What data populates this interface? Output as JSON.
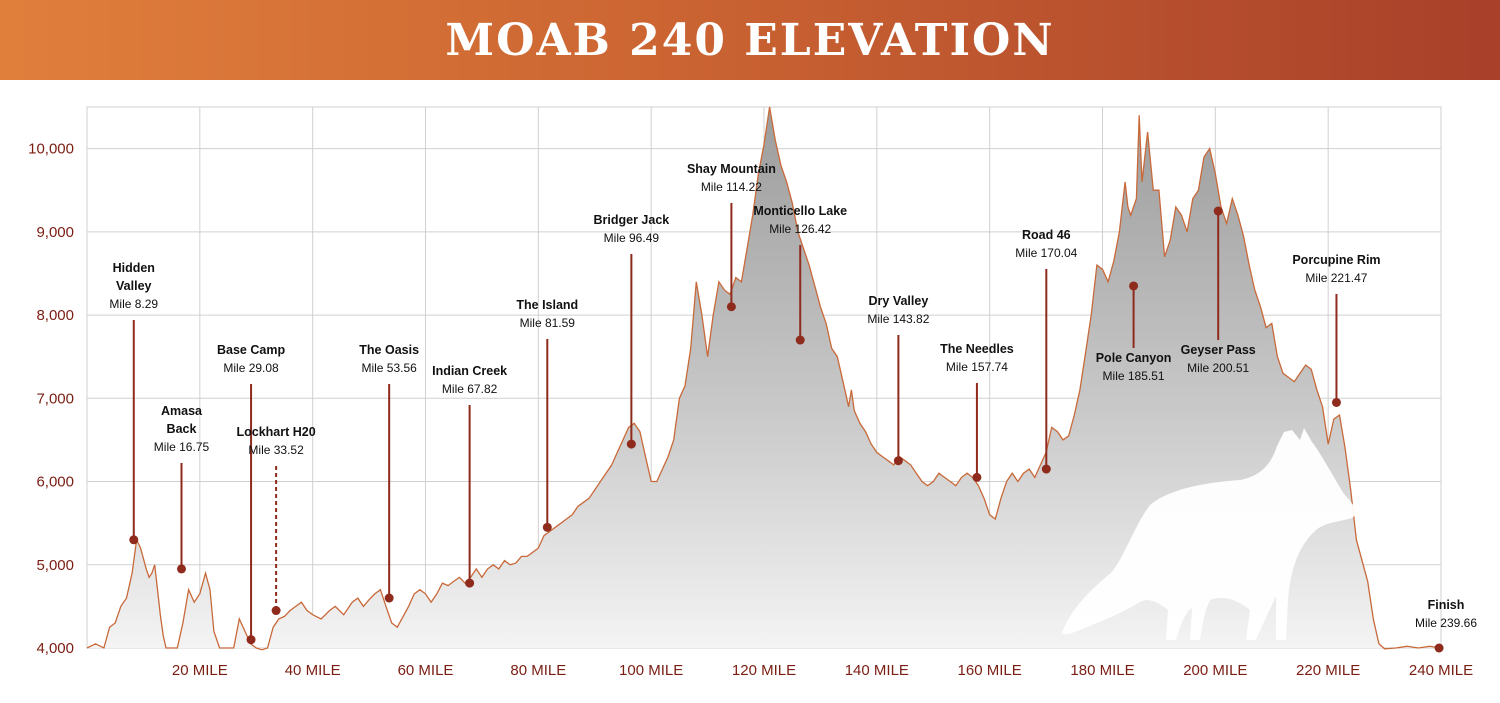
{
  "title": "MOAB 240 ELEVATION",
  "chart_data": {
    "type": "area",
    "xlim": [
      0,
      240
    ],
    "ylim": [
      4000,
      10500
    ],
    "grid": true,
    "y_ticks": [
      {
        "value": 4000,
        "label": "4,000"
      },
      {
        "value": 5000,
        "label": "5,000"
      },
      {
        "value": 6000,
        "label": "6,000"
      },
      {
        "value": 7000,
        "label": "7,000"
      },
      {
        "value": 8000,
        "label": "8,000"
      },
      {
        "value": 9000,
        "label": "9,000"
      },
      {
        "value": 10000,
        "label": "10,000"
      }
    ],
    "x_ticks": [
      {
        "value": 20,
        "label": "20 MILE"
      },
      {
        "value": 40,
        "label": "40 MILE"
      },
      {
        "value": 60,
        "label": "60 MILE"
      },
      {
        "value": 80,
        "label": "80 MILE"
      },
      {
        "value": 100,
        "label": "100 MILE"
      },
      {
        "value": 120,
        "label": "120 MILE"
      },
      {
        "value": 140,
        "label": "140 MILE"
      },
      {
        "value": 160,
        "label": "160 MILE"
      },
      {
        "value": 180,
        "label": "180 MILE"
      },
      {
        "value": 200,
        "label": "200 MILE"
      },
      {
        "value": 220,
        "label": "220 MILE"
      },
      {
        "value": 240,
        "label": "240 MILE"
      }
    ],
    "profile": [
      [
        0,
        4000
      ],
      [
        1.5,
        4050
      ],
      [
        3,
        4000
      ],
      [
        4,
        4250
      ],
      [
        5,
        4300
      ],
      [
        6,
        4500
      ],
      [
        7,
        4600
      ],
      [
        8,
        4900
      ],
      [
        8.8,
        5300
      ],
      [
        9.5,
        5200
      ],
      [
        10.5,
        4950
      ],
      [
        11,
        4850
      ],
      [
        11.5,
        4900
      ],
      [
        12,
        5000
      ],
      [
        12.5,
        4700
      ],
      [
        13,
        4400
      ],
      [
        13.5,
        4150
      ],
      [
        14,
        4000
      ],
      [
        16,
        4000
      ],
      [
        17,
        4300
      ],
      [
        18,
        4700
      ],
      [
        19,
        4550
      ],
      [
        20,
        4650
      ],
      [
        21,
        4900
      ],
      [
        21.8,
        4700
      ],
      [
        22.5,
        4200
      ],
      [
        23.5,
        4000
      ],
      [
        26,
        4000
      ],
      [
        27,
        4350
      ],
      [
        28,
        4200
      ],
      [
        29,
        4050
      ],
      [
        30,
        4000
      ],
      [
        31,
        3980
      ],
      [
        32,
        4000
      ],
      [
        33,
        4250
      ],
      [
        34,
        4350
      ],
      [
        35,
        4380
      ],
      [
        36,
        4450
      ],
      [
        37,
        4500
      ],
      [
        38,
        4550
      ],
      [
        39,
        4450
      ],
      [
        40,
        4400
      ],
      [
        41.5,
        4350
      ],
      [
        43,
        4450
      ],
      [
        44,
        4500
      ],
      [
        45.5,
        4400
      ],
      [
        47,
        4550
      ],
      [
        48,
        4600
      ],
      [
        49,
        4500
      ],
      [
        50,
        4580
      ],
      [
        51,
        4650
      ],
      [
        52,
        4700
      ],
      [
        53,
        4500
      ],
      [
        54,
        4300
      ],
      [
        55,
        4250
      ],
      [
        57,
        4500
      ],
      [
        58,
        4650
      ],
      [
        59,
        4700
      ],
      [
        60,
        4650
      ],
      [
        61,
        4550
      ],
      [
        62,
        4650
      ],
      [
        63,
        4780
      ],
      [
        64,
        4750
      ],
      [
        65,
        4800
      ],
      [
        66,
        4850
      ],
      [
        67,
        4780
      ],
      [
        68,
        4850
      ],
      [
        69,
        4950
      ],
      [
        70,
        4850
      ],
      [
        71,
        4950
      ],
      [
        72,
        5000
      ],
      [
        73,
        4950
      ],
      [
        74,
        5050
      ],
      [
        75,
        5000
      ],
      [
        76,
        5020
      ],
      [
        77,
        5100
      ],
      [
        78,
        5100
      ],
      [
        79,
        5150
      ],
      [
        80,
        5200
      ],
      [
        81,
        5350
      ],
      [
        82,
        5400
      ],
      [
        83,
        5450
      ],
      [
        84,
        5500
      ],
      [
        85,
        5550
      ],
      [
        86,
        5600
      ],
      [
        87,
        5700
      ],
      [
        88,
        5750
      ],
      [
        89,
        5800
      ],
      [
        90,
        5900
      ],
      [
        91,
        6000
      ],
      [
        92,
        6100
      ],
      [
        93,
        6200
      ],
      [
        94,
        6350
      ],
      [
        95,
        6500
      ],
      [
        96,
        6650
      ],
      [
        97,
        6700
      ],
      [
        98,
        6600
      ],
      [
        99,
        6300
      ],
      [
        100,
        6000
      ],
      [
        101,
        6000
      ],
      [
        102,
        6150
      ],
      [
        103,
        6300
      ],
      [
        104,
        6500
      ],
      [
        105,
        7000
      ],
      [
        106,
        7150
      ],
      [
        107,
        7600
      ],
      [
        107.5,
        8000
      ],
      [
        108,
        8400
      ],
      [
        109,
        8000
      ],
      [
        110,
        7500
      ],
      [
        111,
        8000
      ],
      [
        112,
        8400
      ],
      [
        113,
        8300
      ],
      [
        114,
        8250
      ],
      [
        115,
        8450
      ],
      [
        116,
        8400
      ],
      [
        117,
        8800
      ],
      [
        118,
        9200
      ],
      [
        119,
        9700
      ],
      [
        120,
        10050
      ],
      [
        121,
        10500
      ],
      [
        122,
        10100
      ],
      [
        123,
        9800
      ],
      [
        124,
        9600
      ],
      [
        125,
        9350
      ],
      [
        126,
        9000
      ],
      [
        127,
        8800
      ],
      [
        128,
        8600
      ],
      [
        129,
        8350
      ],
      [
        130,
        8100
      ],
      [
        131,
        7900
      ],
      [
        132,
        7600
      ],
      [
        133,
        7500
      ],
      [
        134,
        7200
      ],
      [
        135,
        6900
      ],
      [
        135.5,
        7100
      ],
      [
        136,
        6850
      ],
      [
        137,
        6700
      ],
      [
        138,
        6600
      ],
      [
        139,
        6450
      ],
      [
        140,
        6350
      ],
      [
        141,
        6300
      ],
      [
        142,
        6250
      ],
      [
        143,
        6200
      ],
      [
        144,
        6300
      ],
      [
        145,
        6250
      ],
      [
        146,
        6200
      ],
      [
        147,
        6100
      ],
      [
        148,
        6000
      ],
      [
        149,
        5950
      ],
      [
        150,
        6000
      ],
      [
        151,
        6100
      ],
      [
        152,
        6050
      ],
      [
        153,
        6000
      ],
      [
        154,
        5950
      ],
      [
        155,
        6050
      ],
      [
        156,
        6100
      ],
      [
        157,
        6050
      ],
      [
        158,
        5950
      ],
      [
        159,
        5800
      ],
      [
        160,
        5600
      ],
      [
        161,
        5550
      ],
      [
        162,
        5800
      ],
      [
        163,
        6000
      ],
      [
        164,
        6100
      ],
      [
        165,
        6000
      ],
      [
        166,
        6100
      ],
      [
        167,
        6150
      ],
      [
        168,
        6050
      ],
      [
        169,
        6200
      ],
      [
        170,
        6350
      ],
      [
        171,
        6650
      ],
      [
        172,
        6600
      ],
      [
        173,
        6500
      ],
      [
        174,
        6550
      ],
      [
        175,
        6800
      ],
      [
        176,
        7100
      ],
      [
        177,
        7550
      ],
      [
        178,
        8000
      ],
      [
        179,
        8600
      ],
      [
        180,
        8550
      ],
      [
        181,
        8400
      ],
      [
        182,
        8650
      ],
      [
        183,
        9000
      ],
      [
        184,
        9600
      ],
      [
        184.5,
        9300
      ],
      [
        185,
        9200
      ],
      [
        186,
        9400
      ],
      [
        186.5,
        10400
      ],
      [
        187,
        9600
      ],
      [
        188,
        10200
      ],
      [
        189,
        9500
      ],
      [
        190,
        9500
      ],
      [
        191,
        8700
      ],
      [
        192,
        8900
      ],
      [
        193,
        9300
      ],
      [
        194,
        9200
      ],
      [
        195,
        9000
      ],
      [
        196,
        9400
      ],
      [
        197,
        9500
      ],
      [
        198,
        9900
      ],
      [
        199,
        10000
      ],
      [
        200,
        9700
      ],
      [
        201,
        9300
      ],
      [
        202,
        9100
      ],
      [
        203,
        9400
      ],
      [
        204,
        9200
      ],
      [
        205,
        8950
      ],
      [
        206,
        8600
      ],
      [
        207,
        8300
      ],
      [
        208,
        8100
      ],
      [
        209,
        7850
      ],
      [
        210,
        7900
      ],
      [
        211,
        7500
      ],
      [
        212,
        7300
      ],
      [
        213,
        7250
      ],
      [
        214,
        7200
      ],
      [
        215,
        7300
      ],
      [
        216,
        7400
      ],
      [
        217,
        7350
      ],
      [
        218,
        7100
      ],
      [
        219,
        6900
      ],
      [
        220,
        6450
      ],
      [
        221,
        6750
      ],
      [
        222,
        6800
      ],
      [
        223,
        6400
      ],
      [
        224,
        5900
      ],
      [
        225,
        5300
      ],
      [
        226,
        5050
      ],
      [
        227,
        4800
      ],
      [
        228,
        4350
      ],
      [
        229,
        4050
      ],
      [
        230,
        3990
      ],
      [
        232,
        4000
      ],
      [
        234,
        4020
      ],
      [
        236,
        4000
      ],
      [
        238,
        4020
      ],
      [
        240,
        4000
      ]
    ],
    "aid_stations": [
      {
        "name": "Hidden",
        "name2": "Valley",
        "mile_label": "Mile 8.29",
        "mile": 8.29,
        "elev": 5300
      },
      {
        "name": "Amasa",
        "name2": "Back",
        "mile_label": "Mile 16.75",
        "mile": 16.75,
        "elev": 4950
      },
      {
        "name": "Base Camp",
        "name2": "",
        "mile_label": "Mile 29.08",
        "mile": 29.08,
        "elev": 4100
      },
      {
        "name": "Lockhart H20",
        "name2": "",
        "mile_label": "Mile 33.52",
        "mile": 33.52,
        "elev": 4450,
        "dashed": true
      },
      {
        "name": "The Oasis",
        "name2": "",
        "mile_label": "Mile 53.56",
        "mile": 53.56,
        "elev": 4600
      },
      {
        "name": "Indian Creek",
        "name2": "",
        "mile_label": "Mile 67.82",
        "mile": 67.82,
        "elev": 4780
      },
      {
        "name": "The Island",
        "name2": "",
        "mile_label": "Mile 81.59",
        "mile": 81.59,
        "elev": 5450
      },
      {
        "name": "Bridger Jack",
        "name2": "",
        "mile_label": "Mile 96.49",
        "mile": 96.49,
        "elev": 6450
      },
      {
        "name": "Shay Mountain",
        "name2": "",
        "mile_label": "Mile 114.22",
        "mile": 114.22,
        "elev": 8100
      },
      {
        "name": "Monticello Lake",
        "name2": "",
        "mile_label": "Mile 126.42",
        "mile": 126.42,
        "elev": 7700
      },
      {
        "name": "Dry Valley",
        "name2": "",
        "mile_label": "Mile 143.82",
        "mile": 143.82,
        "elev": 6250
      },
      {
        "name": "The Needles",
        "name2": "",
        "mile_label": "Mile 157.74",
        "mile": 157.74,
        "elev": 6050
      },
      {
        "name": "Road 46",
        "name2": "",
        "mile_label": "Mile 170.04",
        "mile": 170.04,
        "elev": 6150
      },
      {
        "name": "Pole Canyon",
        "name2": "",
        "mile_label": "Mile 185.51",
        "mile": 185.51,
        "elev": 8350
      },
      {
        "name": "Geyser Pass",
        "name2": "",
        "mile_label": "Mile 200.51",
        "mile": 200.51,
        "elev": 9250
      },
      {
        "name": "Porcupine Rim",
        "name2": "",
        "mile_label": "Mile 221.47",
        "mile": 221.47,
        "elev": 6950
      },
      {
        "name": "Finish",
        "name2": "",
        "mile_label": "Mile 239.66",
        "mile": 239.66,
        "elev": 4000
      }
    ],
    "colors": {
      "profile_line": "#c8693a",
      "marker": "#8e2b1d",
      "tick_text": "#7a1d12",
      "grid": "#d0d0d0"
    }
  }
}
